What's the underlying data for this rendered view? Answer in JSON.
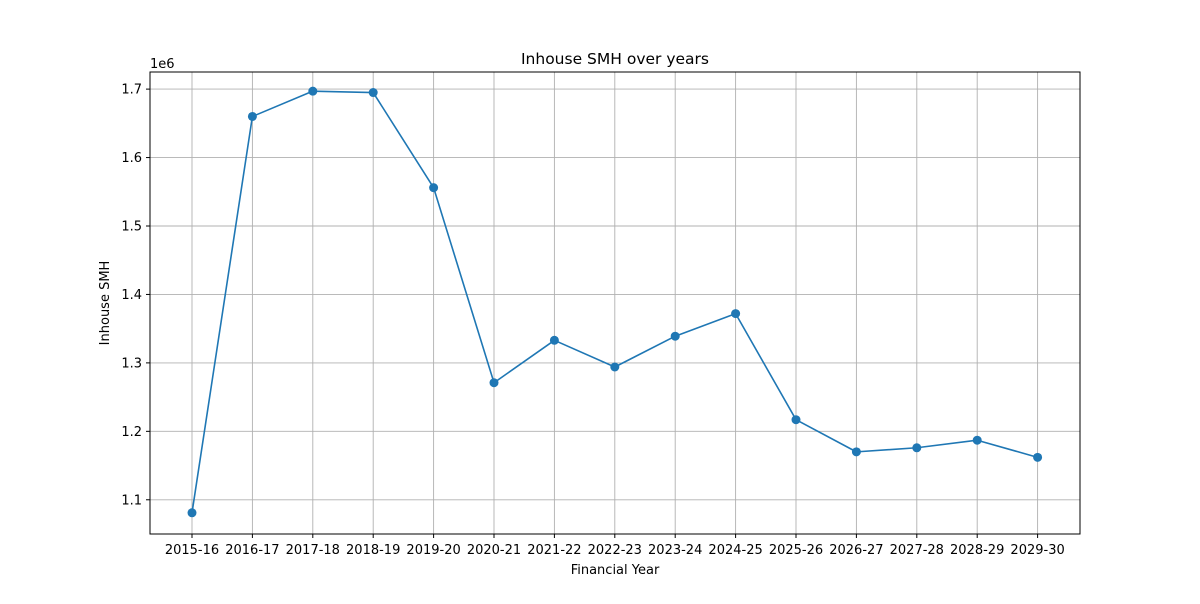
{
  "chart_data": {
    "type": "line",
    "title": "Inhouse SMH over years",
    "xlabel": "Financial Year",
    "ylabel": "Inhouse SMH",
    "y_offset_label": "1e6",
    "y_scale_factor": 1000000,
    "categories": [
      "2015-16",
      "2016-17",
      "2017-18",
      "2018-19",
      "2019-20",
      "2020-21",
      "2021-22",
      "2022-23",
      "2023-24",
      "2024-25",
      "2025-26",
      "2026-27",
      "2027-28",
      "2028-29",
      "2029-30"
    ],
    "series": [
      {
        "values": [
          1081000,
          1660000,
          1697000,
          1695000,
          1556000,
          1271000,
          1333000,
          1294000,
          1339000,
          1372000,
          1217000,
          1170000,
          1176000,
          1187000,
          1162000
        ],
        "color": "#1f77b4",
        "marker": "circle"
      }
    ],
    "ylim": [
      1050000,
      1725000
    ],
    "yticks": [
      1100000,
      1200000,
      1300000,
      1400000,
      1500000,
      1600000,
      1700000
    ],
    "ytick_labels": [
      "1.1",
      "1.2",
      "1.3",
      "1.4",
      "1.5",
      "1.6",
      "1.7"
    ],
    "grid": true,
    "grid_color": "#b0b0b0"
  }
}
